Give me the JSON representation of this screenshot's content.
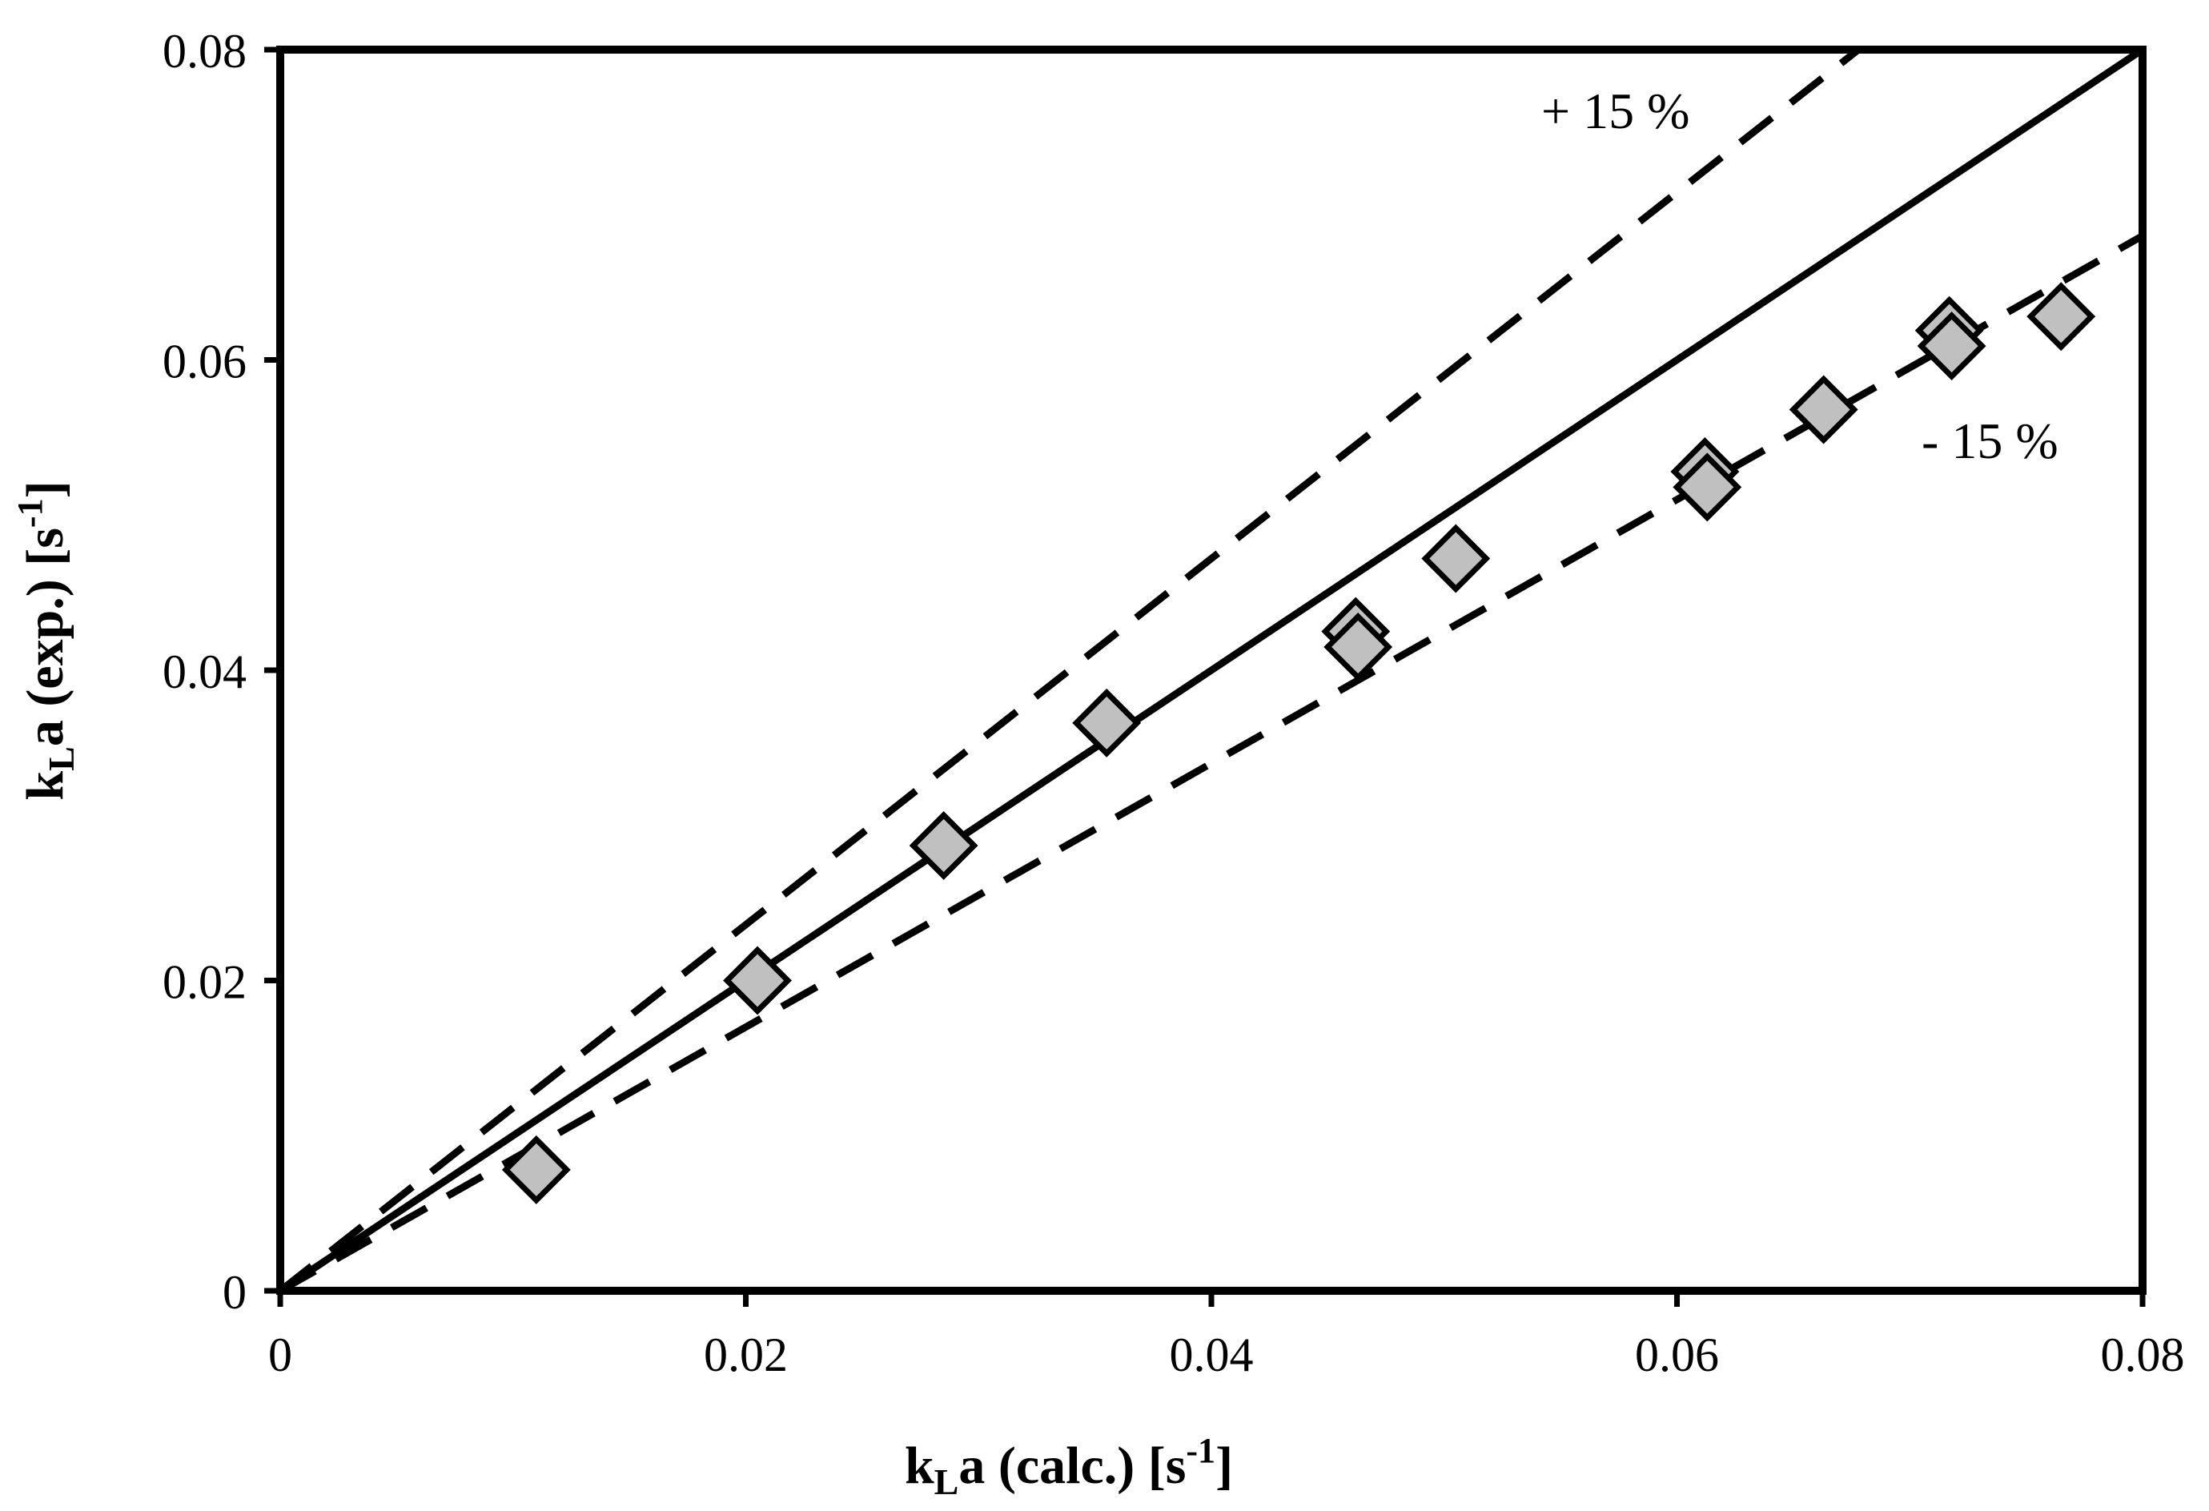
{
  "chart_data": {
    "type": "scatter",
    "title": "",
    "xlabel": {
      "main": "k",
      "subscript": "L",
      "rest": "a (calc.) [s",
      "superscript": "-1",
      "close": "]"
    },
    "ylabel": {
      "main": "k",
      "subscript": "L",
      "rest": "a (exp.) [s",
      "superscript": "-1",
      "close": "]"
    },
    "xlim": [
      0,
      0.08
    ],
    "ylim": [
      0,
      0.08
    ],
    "x_ticks": [
      0,
      0.02,
      0.04,
      0.06,
      0.08
    ],
    "y_ticks": [
      0,
      0.02,
      0.04,
      0.06,
      0.08
    ],
    "x_tick_labels": [
      "0",
      "0.02",
      "0.04",
      "0.06",
      "0.08"
    ],
    "y_tick_labels": [
      "0",
      "0.02",
      "0.04",
      "0.06",
      "0.08"
    ],
    "grid": false,
    "series": [
      {
        "name": "data",
        "marker": "diamond",
        "fill": "#c0c0c0",
        "edge": "#000000",
        "points": [
          {
            "x": 0.011,
            "y": 0.0078
          },
          {
            "x": 0.0205,
            "y": 0.02
          },
          {
            "x": 0.0285,
            "y": 0.0287
          },
          {
            "x": 0.0355,
            "y": 0.0366
          },
          {
            "x": 0.0462,
            "y": 0.0425
          },
          {
            "x": 0.0463,
            "y": 0.0415
          },
          {
            "x": 0.0505,
            "y": 0.0472
          },
          {
            "x": 0.0612,
            "y": 0.0528
          },
          {
            "x": 0.0613,
            "y": 0.0518
          },
          {
            "x": 0.0663,
            "y": 0.0568
          },
          {
            "x": 0.0717,
            "y": 0.0619
          },
          {
            "x": 0.0718,
            "y": 0.0609
          },
          {
            "x": 0.0765,
            "y": 0.0628
          }
        ]
      }
    ],
    "reference_lines": [
      {
        "name": "parity",
        "slope": 1.0,
        "style": "solid"
      },
      {
        "name": "plus-15",
        "slope": 1.18,
        "style": "dashed",
        "label": "+ 15 %"
      },
      {
        "name": "minus-15",
        "slope": 0.85,
        "style": "dashed",
        "label": "- 15 %"
      }
    ],
    "colors": {
      "axis": "#000000",
      "marker_fill": "#c0c0c0",
      "marker_edge": "#000000",
      "line": "#000000"
    }
  }
}
